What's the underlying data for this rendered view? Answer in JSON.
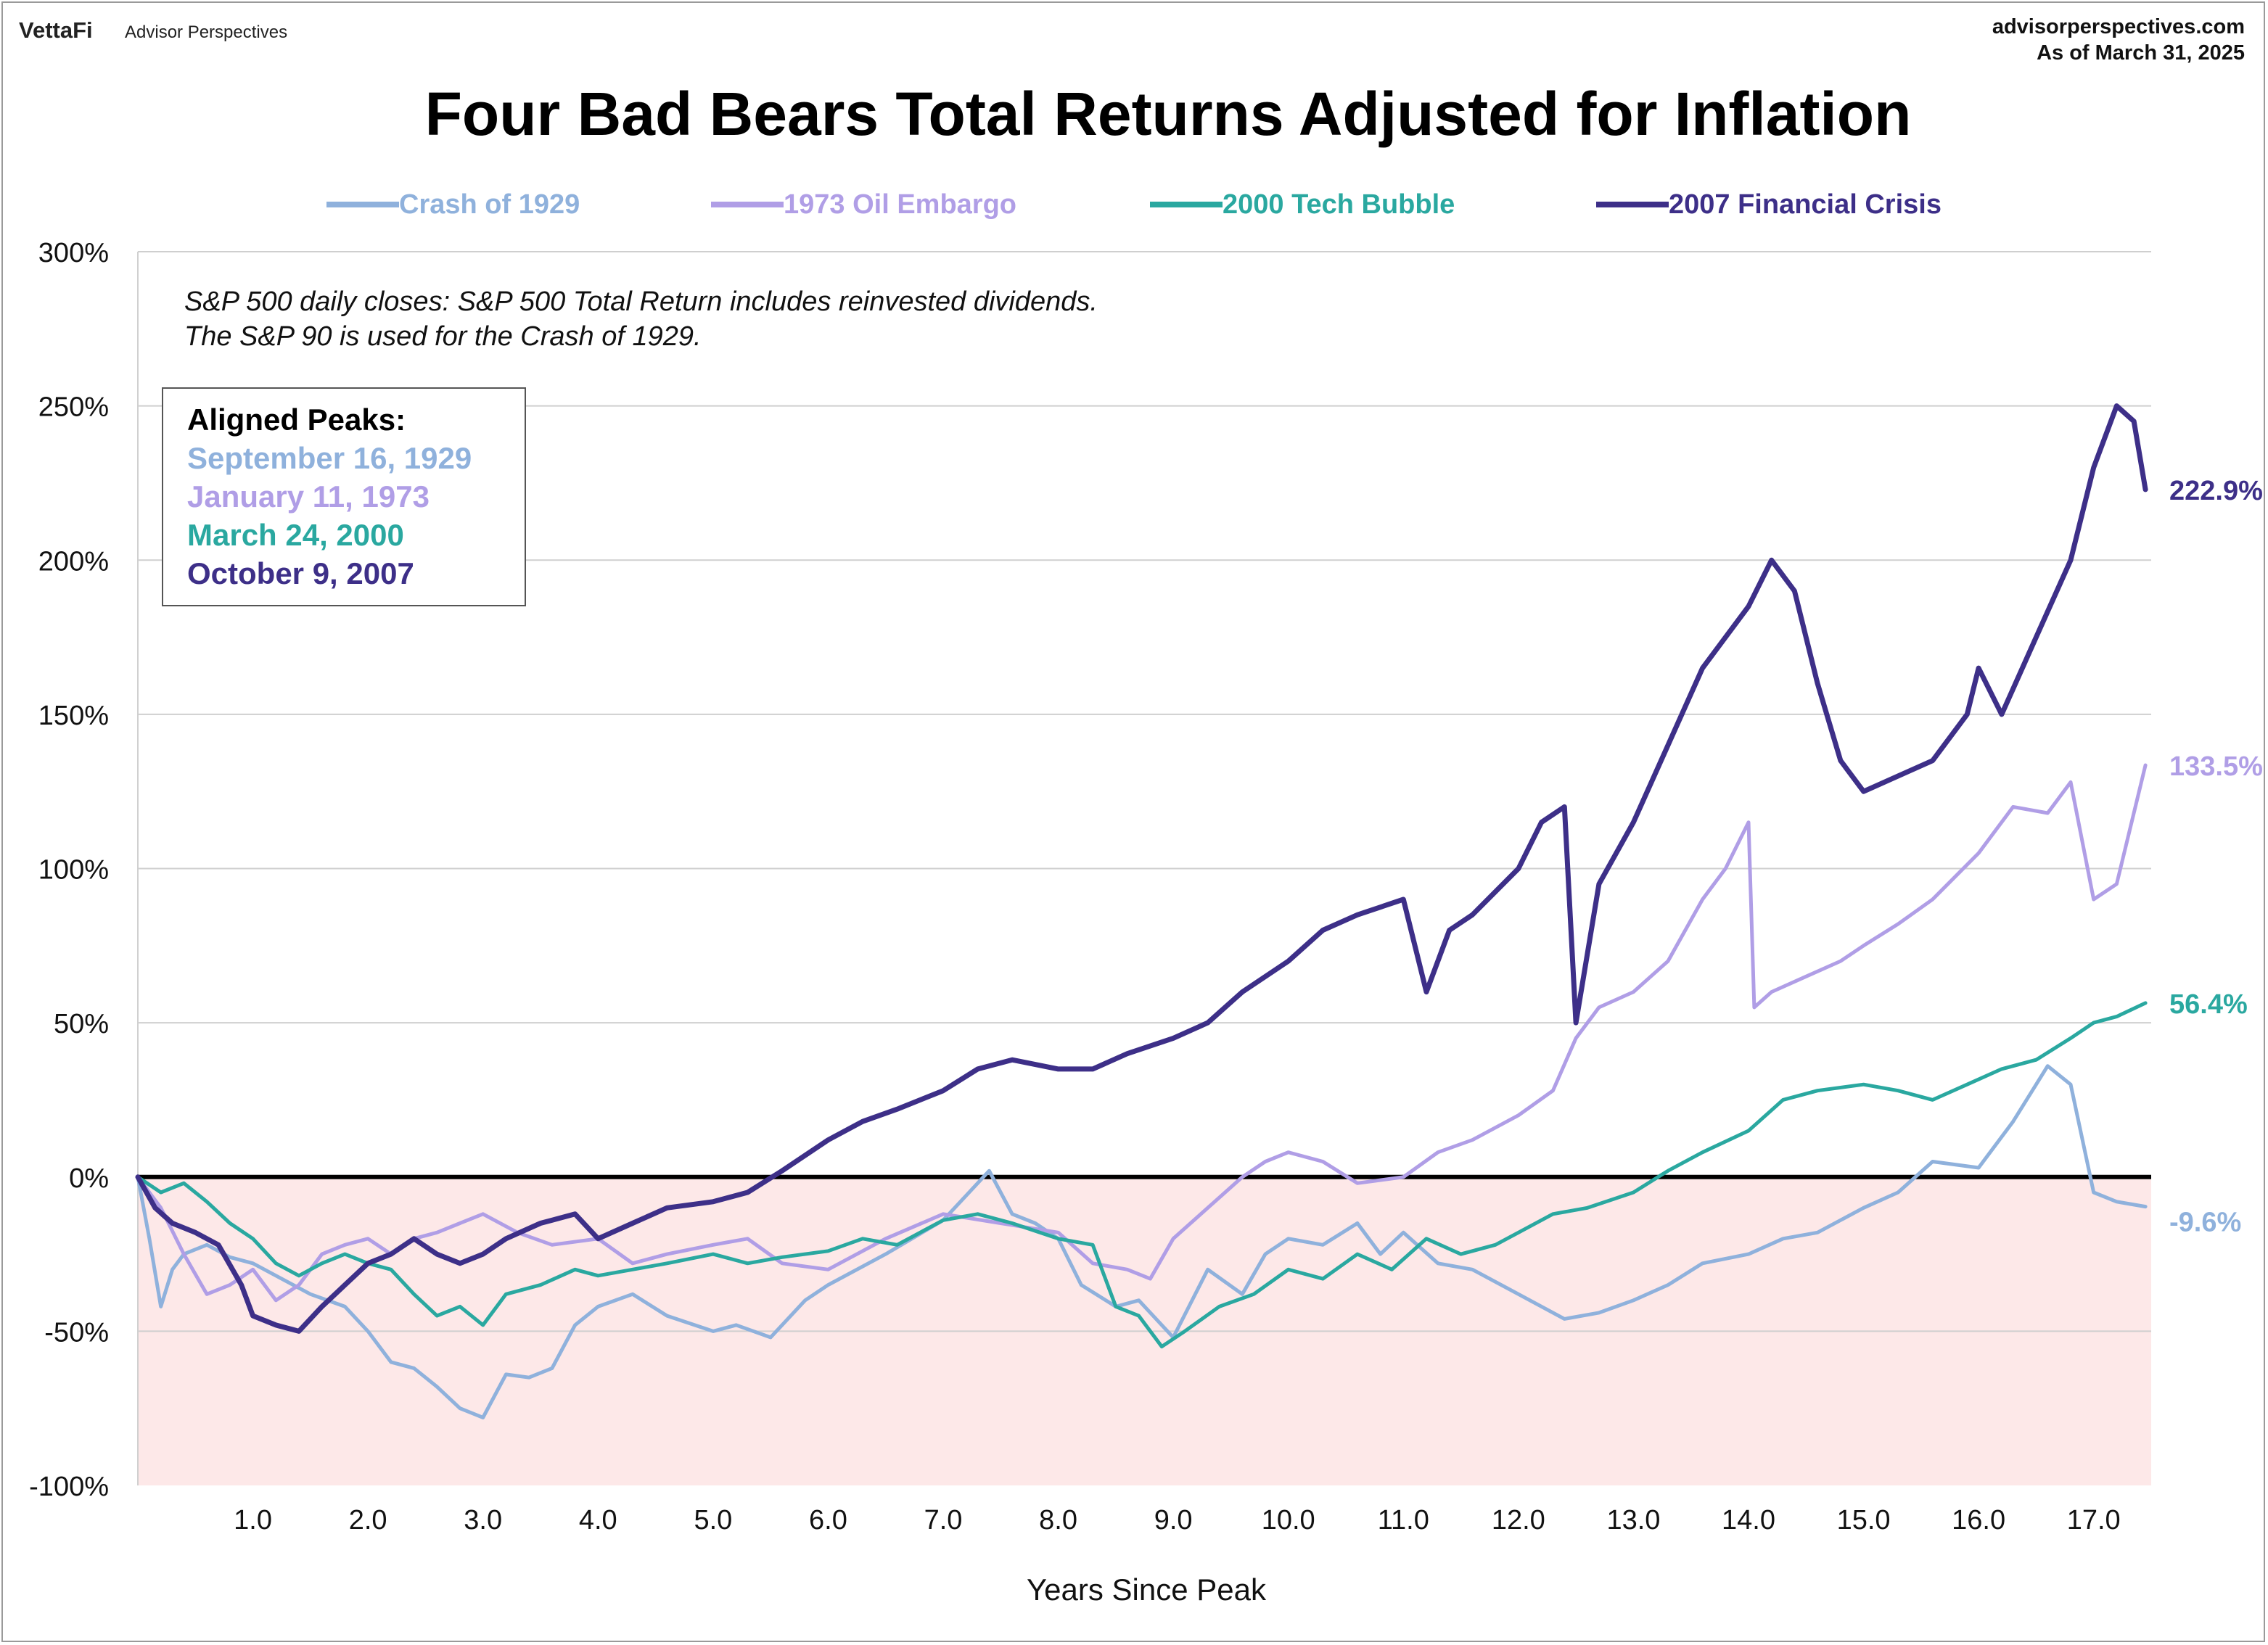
{
  "header": {
    "brand": "VettaFi",
    "brand_sub": "Advisor Perspectives",
    "site": "advisorperspectives.com",
    "as_of": "As of March 31, 2025"
  },
  "chart_data": {
    "type": "line",
    "title": "Four Bad Bears Total Returns Adjusted for Inflation",
    "xlabel": "Years Since Peak",
    "ylabel": "",
    "xlim": [
      0,
      17.5
    ],
    "ylim": [
      -100,
      300
    ],
    "x_ticks": [
      1,
      2,
      3,
      4,
      5,
      6,
      7,
      8,
      9,
      10,
      11,
      12,
      13,
      14,
      15,
      16,
      17
    ],
    "x_tick_labels": [
      "1.0",
      "2.0",
      "3.0",
      "4.0",
      "5.0",
      "6.0",
      "7.0",
      "8.0",
      "9.0",
      "10.0",
      "11.0",
      "12.0",
      "13.0",
      "14.0",
      "15.0",
      "16.0",
      "17.0"
    ],
    "y_ticks": [
      -100,
      -50,
      0,
      50,
      100,
      150,
      200,
      250,
      300
    ],
    "y_tick_labels": [
      "-100%",
      "-50%",
      "0%",
      "50%",
      "100%",
      "150%",
      "200%",
      "250%",
      "300%"
    ],
    "grid": "horizontal",
    "legend_position": "top",
    "negative_region_color": "#fde8e8",
    "note_lines": [
      "S&P 500 daily closes: S&P 500 Total Return includes reinvested dividends.",
      "The S&P 90 is used for the Crash of 1929."
    ],
    "peaks_box": {
      "title": "Aligned Peaks:",
      "items": [
        {
          "label": "September 16, 1929",
          "color": "#8fb1dc"
        },
        {
          "label": "January 11, 1973",
          "color": "#b09ee6"
        },
        {
          "label": "March 24, 2000",
          "color": "#2aa8a0"
        },
        {
          "label": "October 9, 2007",
          "color": "#3d2f88"
        }
      ]
    },
    "series": [
      {
        "name": "Crash of 1929",
        "color": "#8fb1dc",
        "label_color": "#8fb1dc",
        "end_label": "-9.6%",
        "x": [
          0,
          0.1,
          0.2,
          0.3,
          0.4,
          0.6,
          0.8,
          1.0,
          1.2,
          1.5,
          1.8,
          2.0,
          2.2,
          2.4,
          2.6,
          2.8,
          3.0,
          3.2,
          3.4,
          3.6,
          3.8,
          4.0,
          4.3,
          4.6,
          5.0,
          5.2,
          5.5,
          5.8,
          6.0,
          6.5,
          7.0,
          7.2,
          7.4,
          7.6,
          7.8,
          8.0,
          8.2,
          8.5,
          8.7,
          9.0,
          9.3,
          9.6,
          9.8,
          10.0,
          10.3,
          10.6,
          10.8,
          11.0,
          11.3,
          11.6,
          12.0,
          12.4,
          12.7,
          13.0,
          13.3,
          13.6,
          14.0,
          14.3,
          14.6,
          15.0,
          15.3,
          15.6,
          16.0,
          16.3,
          16.6,
          16.8,
          17.0,
          17.2,
          17.45
        ],
        "y": [
          0,
          -20,
          -42,
          -30,
          -25,
          -22,
          -26,
          -28,
          -32,
          -38,
          -42,
          -50,
          -60,
          -62,
          -68,
          -75,
          -78,
          -64,
          -65,
          -62,
          -48,
          -42,
          -38,
          -45,
          -50,
          -48,
          -52,
          -40,
          -35,
          -25,
          -14,
          -6,
          2,
          -12,
          -15,
          -20,
          -35,
          -42,
          -40,
          -52,
          -30,
          -38,
          -25,
          -20,
          -22,
          -15,
          -25,
          -18,
          -28,
          -30,
          -38,
          -46,
          -44,
          -40,
          -35,
          -28,
          -25,
          -20,
          -18,
          -10,
          -5,
          5,
          3,
          18,
          36,
          30,
          -5,
          -8,
          -9.6
        ]
      },
      {
        "name": "1973 Oil Embargo",
        "color": "#b09ee6",
        "label_color": "#b09ee6",
        "end_label": "133.5%",
        "x": [
          0,
          0.2,
          0.4,
          0.6,
          0.8,
          1.0,
          1.2,
          1.4,
          1.6,
          1.8,
          2.0,
          2.2,
          2.4,
          2.6,
          2.8,
          3.0,
          3.3,
          3.6,
          4.0,
          4.3,
          4.6,
          5.0,
          5.3,
          5.6,
          6.0,
          6.5,
          7.0,
          7.5,
          8.0,
          8.3,
          8.6,
          8.8,
          9.0,
          9.3,
          9.6,
          9.8,
          10.0,
          10.3,
          10.6,
          11.0,
          11.3,
          11.6,
          12.0,
          12.3,
          12.5,
          12.7,
          13.0,
          13.3,
          13.6,
          13.8,
          14.0,
          14.05,
          14.2,
          14.5,
          14.8,
          15.0,
          15.3,
          15.6,
          16.0,
          16.3,
          16.6,
          16.8,
          17.0,
          17.2,
          17.45
        ],
        "y": [
          0,
          -10,
          -25,
          -38,
          -35,
          -30,
          -40,
          -35,
          -25,
          -22,
          -20,
          -25,
          -20,
          -18,
          -15,
          -12,
          -18,
          -22,
          -20,
          -28,
          -25,
          -22,
          -20,
          -28,
          -30,
          -20,
          -12,
          -15,
          -18,
          -28,
          -30,
          -33,
          -20,
          -10,
          0,
          5,
          8,
          5,
          -2,
          0,
          8,
          12,
          20,
          28,
          45,
          55,
          60,
          70,
          90,
          100,
          115,
          55,
          60,
          65,
          70,
          75,
          82,
          90,
          105,
          120,
          118,
          128,
          90,
          95,
          133.5
        ]
      },
      {
        "name": "2000 Tech Bubble",
        "color": "#2aa8a0",
        "label_color": "#2aa8a0",
        "end_label": "56.4%",
        "x": [
          0,
          0.2,
          0.4,
          0.6,
          0.8,
          1.0,
          1.2,
          1.4,
          1.6,
          1.8,
          2.0,
          2.2,
          2.4,
          2.6,
          2.8,
          3.0,
          3.2,
          3.5,
          3.8,
          4.0,
          4.3,
          4.6,
          5.0,
          5.3,
          5.6,
          6.0,
          6.3,
          6.6,
          7.0,
          7.3,
          7.6,
          8.0,
          8.3,
          8.5,
          8.7,
          8.9,
          9.1,
          9.4,
          9.7,
          10.0,
          10.3,
          10.6,
          10.9,
          11.2,
          11.5,
          11.8,
          12.0,
          12.3,
          12.6,
          13.0,
          13.3,
          13.6,
          14.0,
          14.3,
          14.6,
          15.0,
          15.3,
          15.6,
          15.9,
          16.2,
          16.5,
          16.8,
          17.0,
          17.2,
          17.45
        ],
        "y": [
          0,
          -5,
          -2,
          -8,
          -15,
          -20,
          -28,
          -32,
          -28,
          -25,
          -28,
          -30,
          -38,
          -45,
          -42,
          -48,
          -38,
          -35,
          -30,
          -32,
          -30,
          -28,
          -25,
          -28,
          -26,
          -24,
          -20,
          -22,
          -14,
          -12,
          -15,
          -20,
          -22,
          -42,
          -45,
          -55,
          -50,
          -42,
          -38,
          -30,
          -33,
          -25,
          -30,
          -20,
          -25,
          -22,
          -18,
          -12,
          -10,
          -5,
          2,
          8,
          15,
          25,
          28,
          30,
          28,
          25,
          30,
          35,
          38,
          45,
          50,
          52,
          56.4
        ]
      },
      {
        "name": "2007 Financial Crisis",
        "color": "#3d2f88",
        "label_color": "#3d2f88",
        "end_label": "222.9%",
        "x": [
          0,
          0.15,
          0.3,
          0.5,
          0.7,
          0.9,
          1.0,
          1.2,
          1.4,
          1.6,
          1.8,
          2.0,
          2.2,
          2.4,
          2.6,
          2.8,
          3.0,
          3.2,
          3.5,
          3.8,
          4.0,
          4.3,
          4.6,
          5.0,
          5.3,
          5.6,
          6.0,
          6.3,
          6.6,
          7.0,
          7.3,
          7.6,
          8.0,
          8.3,
          8.6,
          9.0,
          9.3,
          9.6,
          10.0,
          10.3,
          10.6,
          11.0,
          11.2,
          11.4,
          11.6,
          12.0,
          12.2,
          12.4,
          12.5,
          12.7,
          13.0,
          13.3,
          13.6,
          14.0,
          14.2,
          14.4,
          14.6,
          14.8,
          15.0,
          15.3,
          15.6,
          15.9,
          16.0,
          16.2,
          16.5,
          16.8,
          17.0,
          17.2,
          17.35,
          17.45
        ],
        "y": [
          0,
          -10,
          -15,
          -18,
          -22,
          -35,
          -45,
          -48,
          -50,
          -42,
          -35,
          -28,
          -25,
          -20,
          -25,
          -28,
          -25,
          -20,
          -15,
          -12,
          -20,
          -15,
          -10,
          -8,
          -5,
          2,
          12,
          18,
          22,
          28,
          35,
          38,
          35,
          35,
          40,
          45,
          50,
          60,
          70,
          80,
          85,
          90,
          60,
          80,
          85,
          100,
          115,
          120,
          50,
          95,
          115,
          140,
          165,
          185,
          200,
          190,
          160,
          135,
          125,
          130,
          135,
          150,
          165,
          150,
          175,
          200,
          230,
          250,
          245,
          222.9
        ]
      }
    ]
  }
}
